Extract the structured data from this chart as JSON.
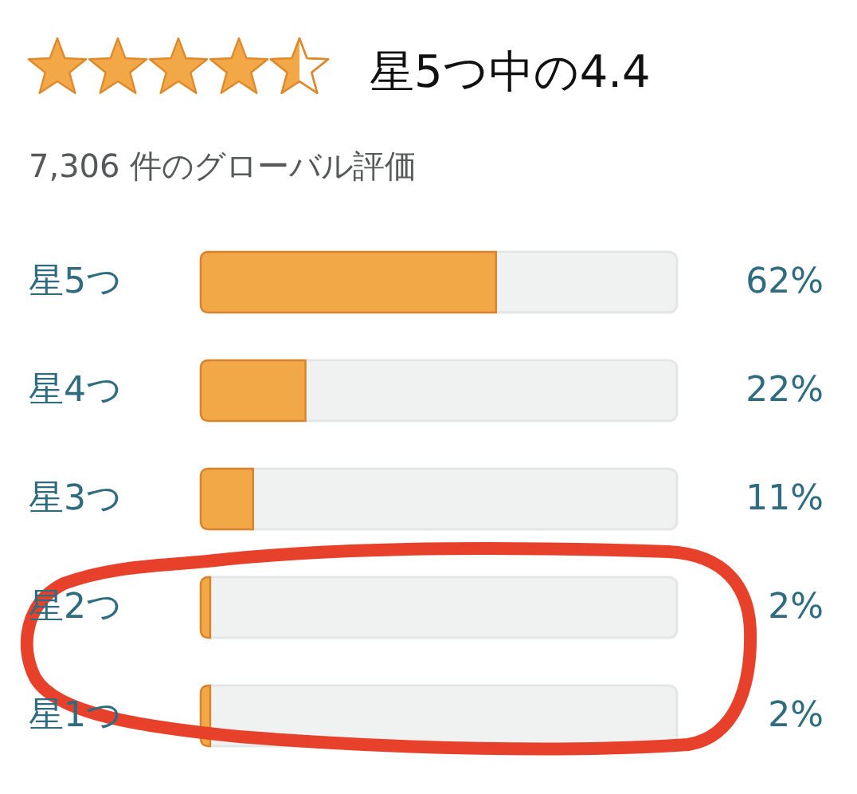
{
  "chart_data": {
    "type": "bar",
    "orientation": "horizontal",
    "title": "星5つ中の4.4",
    "subtitle": "7,306 件のグローバル評価",
    "categories": [
      "星5つ",
      "星4つ",
      "星3つ",
      "星2つ",
      "星1つ"
    ],
    "values": [
      62,
      22,
      11,
      2,
      2
    ],
    "value_labels": [
      "62%",
      "22%",
      "11%",
      "2%",
      "2%"
    ],
    "color": "#f3a847",
    "xlim": [
      0,
      100
    ],
    "tick_labels": "y"
  }
}
